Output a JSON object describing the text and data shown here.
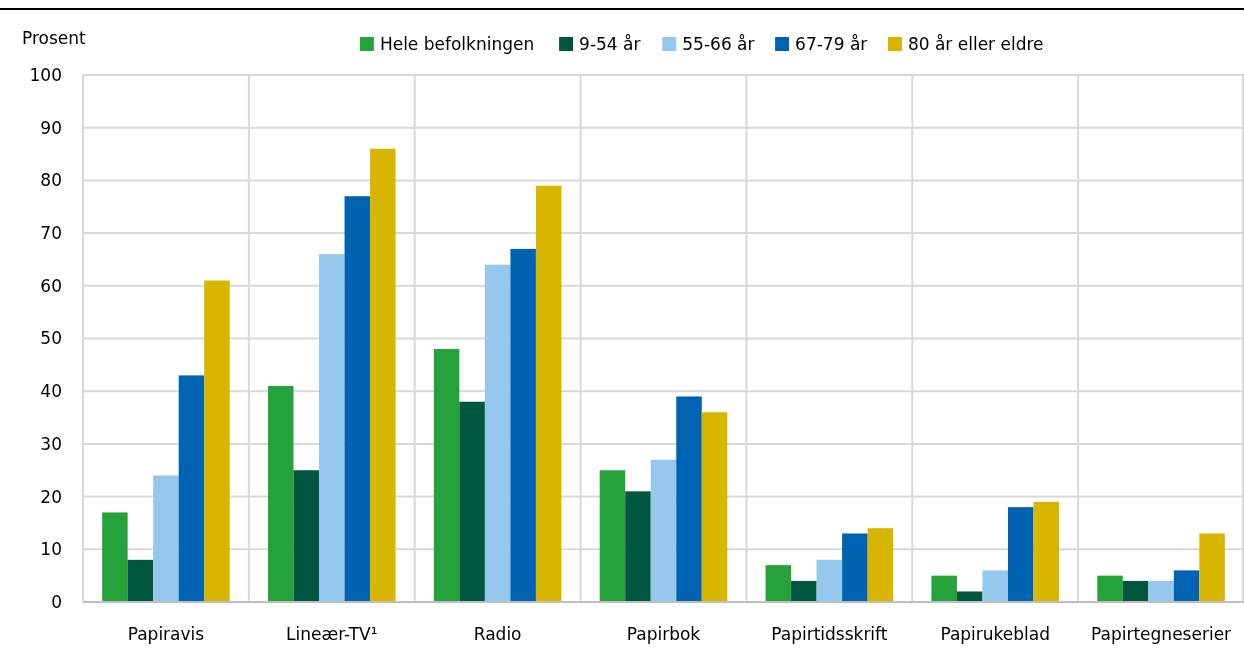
{
  "chart_data": {
    "type": "bar",
    "ylabel": "Prosent",
    "categories": [
      "Papiravis",
      "Lineær-TV¹",
      "Radio",
      "Papirbok",
      "Papirtidsskrift",
      "Papirukeblad",
      "Papirtegneserier"
    ],
    "series": [
      {
        "name": "Hele befolkningen",
        "color": "#25a33a",
        "values": [
          17,
          41,
          48,
          25,
          7,
          5,
          5
        ]
      },
      {
        "name": "9-54 år",
        "color": "#00573f",
        "values": [
          8,
          25,
          38,
          21,
          4,
          2,
          4
        ]
      },
      {
        "name": "55-66 år",
        "color": "#95c8ed",
        "values": [
          24,
          66,
          64,
          27,
          8,
          6,
          4
        ]
      },
      {
        "name": "67-79 år",
        "color": "#0063b1",
        "values": [
          43,
          77,
          67,
          39,
          13,
          18,
          6
        ]
      },
      {
        "name": "80 år eller eldre",
        "color": "#d8b600",
        "values": [
          61,
          86,
          79,
          36,
          14,
          19,
          13
        ]
      }
    ],
    "ylim": [
      0,
      100
    ],
    "yticks": [
      0,
      10,
      20,
      30,
      40,
      50,
      60,
      70,
      80,
      90,
      100
    ],
    "grid": true,
    "legend": "top"
  }
}
